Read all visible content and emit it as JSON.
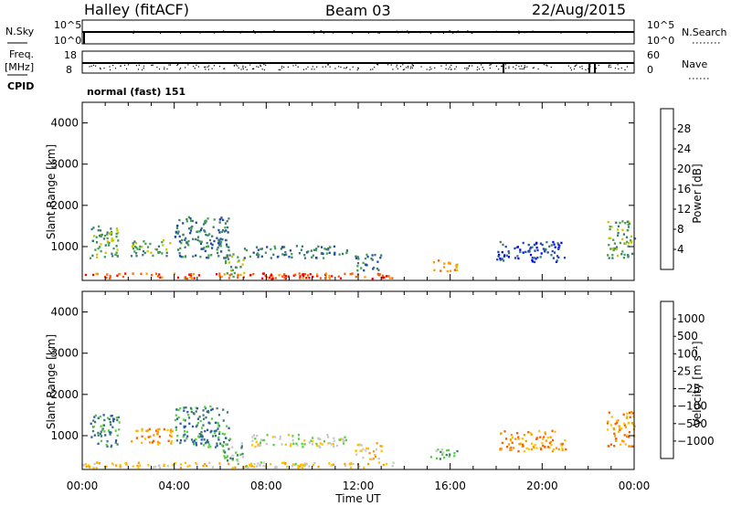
{
  "header": {
    "station": "Halley (fitACF)",
    "beam": "Beam 03",
    "date": "22/Aug/2015"
  },
  "sky_panel": {
    "left_label": "N.Sky",
    "right_label": "N.Search",
    "left_ticks": [
      "10^5",
      "10^0"
    ],
    "right_ticks": [
      "10^5",
      "10^0"
    ]
  },
  "freq_panel": {
    "left_label_1": "Freq.",
    "left_label_2": "[MHz]",
    "right_label": "Nave",
    "left_ticks": [
      "18",
      "8"
    ],
    "right_ticks": [
      "60",
      "0"
    ]
  },
  "cpid": {
    "label": "CPID",
    "text": "normal (fast) 151"
  },
  "chart_data": [
    {
      "type": "heatmap",
      "quantity": "Power",
      "ylabel": "Slant Range [km]",
      "y_ticks": [
        "4000",
        "3000",
        "2000",
        "1000"
      ],
      "ylim": [
        180,
        4500
      ],
      "xlim": [
        0,
        24
      ],
      "x_ticks": [
        "00:00",
        "04:00",
        "08:00",
        "12:00",
        "16:00",
        "20:00",
        "00:00"
      ],
      "colorbar": {
        "label": "Power [dB]",
        "ticks": [
          "28",
          "24",
          "20",
          "16",
          "12",
          "8",
          "4"
        ],
        "colors": [
          "#0000ff",
          "#1e4ba8",
          "#3c7a73",
          "#3fa04f",
          "#c8c800",
          "#ff9900",
          "#ff5a00",
          "#ff0000"
        ]
      },
      "echo_regions": [
        {
          "t0": 0.3,
          "t1": 1.6,
          "r0": 700,
          "r1": 1500,
          "level": 3
        },
        {
          "t0": 2.1,
          "t1": 3.9,
          "r0": 750,
          "r1": 1150,
          "level": 3
        },
        {
          "t0": 4.0,
          "t1": 6.4,
          "r0": 700,
          "r1": 1700,
          "level": 2
        },
        {
          "t0": 6.1,
          "t1": 7.0,
          "r0": 250,
          "r1": 800,
          "level": 3
        },
        {
          "t0": 7.0,
          "t1": 11.5,
          "r0": 700,
          "r1": 1000,
          "level": 2
        },
        {
          "t0": 11.8,
          "t1": 13.0,
          "r0": 400,
          "r1": 800,
          "level": 2
        },
        {
          "t0": 15.1,
          "t1": 16.3,
          "r0": 380,
          "r1": 650,
          "level": 5
        },
        {
          "t0": 18.0,
          "t1": 21.0,
          "r0": 600,
          "r1": 1100,
          "level": 1
        },
        {
          "t0": 22.8,
          "t1": 24.0,
          "r0": 700,
          "r1": 1600,
          "level": 3
        },
        {
          "t0": 0.0,
          "t1": 13.5,
          "r0": 200,
          "r1": 330,
          "level": 6
        },
        {
          "t0": 7.0,
          "t1": 10.0,
          "r0": 200,
          "r1": 330,
          "level": 7
        }
      ]
    },
    {
      "type": "heatmap",
      "quantity": "Velocity",
      "ylabel": "Slant Range [km]",
      "y_ticks": [
        "4000",
        "3000",
        "2000",
        "1000"
      ],
      "ylim": [
        180,
        4500
      ],
      "xlim": [
        0,
        24
      ],
      "x_ticks": [
        "00:00",
        "04:00",
        "08:00",
        "12:00",
        "16:00",
        "20:00",
        "00:00"
      ],
      "xlabel": "Time UT",
      "colorbar": {
        "label": "Velocity [m s⁻¹]",
        "ticks": [
          "1000",
          "500",
          "100",
          "25",
          "−25",
          "−100",
          "−500",
          "−1000"
        ],
        "colors": [
          "#ff0000",
          "#ff5a00",
          "#ff9900",
          "#ffc200",
          "#c8c8c8",
          "#55d040",
          "#3c7a73",
          "#2a5aa8",
          "#0000ff"
        ]
      },
      "echo_regions": [
        {
          "t0": 0.3,
          "t1": 1.6,
          "r0": 700,
          "r1": 1500,
          "level": 6
        },
        {
          "t0": 2.1,
          "t1": 3.9,
          "r0": 750,
          "r1": 1150,
          "level": 2
        },
        {
          "t0": 4.0,
          "t1": 6.4,
          "r0": 700,
          "r1": 1700,
          "level": 6
        },
        {
          "t0": 6.1,
          "t1": 7.0,
          "r0": 250,
          "r1": 800,
          "level": 5
        },
        {
          "t0": 7.0,
          "t1": 11.5,
          "r0": 700,
          "r1": 1000,
          "level": 4
        },
        {
          "t0": 11.8,
          "t1": 13.0,
          "r0": 400,
          "r1": 800,
          "level": 3
        },
        {
          "t0": 15.1,
          "t1": 16.3,
          "r0": 380,
          "r1": 650,
          "level": 5
        },
        {
          "t0": 18.0,
          "t1": 21.0,
          "r0": 600,
          "r1": 1100,
          "level": 2
        },
        {
          "t0": 22.8,
          "t1": 24.0,
          "r0": 700,
          "r1": 1600,
          "level": 2
        },
        {
          "t0": 0.0,
          "t1": 13.5,
          "r0": 200,
          "r1": 330,
          "level": 3
        },
        {
          "t0": 7.0,
          "t1": 10.0,
          "r0": 200,
          "r1": 330,
          "level": 4
        }
      ]
    }
  ]
}
